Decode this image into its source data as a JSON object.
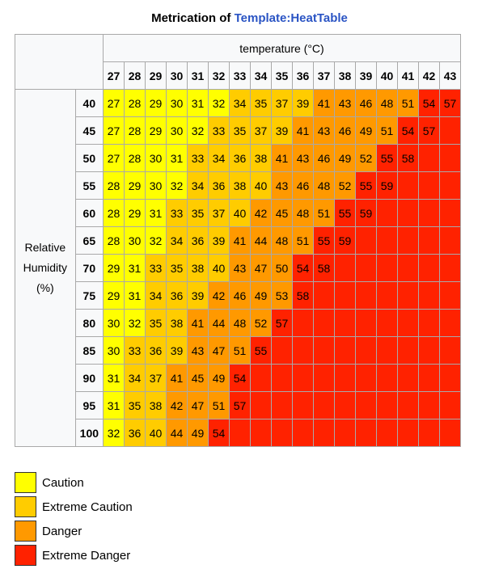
{
  "title": {
    "prefix": "Metrication of ",
    "link": "Template:HeatTable"
  },
  "chart_data": {
    "type": "heatmap",
    "header_label": "temperature (°C)",
    "row_label": [
      "Relative",
      "Humidity",
      "(%)"
    ],
    "temperatures": [
      27,
      28,
      29,
      30,
      31,
      32,
      33,
      34,
      35,
      36,
      37,
      38,
      39,
      40,
      41,
      42,
      43
    ],
    "humidities": [
      40,
      45,
      50,
      55,
      60,
      65,
      70,
      75,
      80,
      85,
      90,
      95,
      100
    ],
    "values": [
      [
        27,
        28,
        29,
        30,
        31,
        32,
        34,
        35,
        37,
        39,
        41,
        43,
        46,
        48,
        51,
        54,
        57
      ],
      [
        27,
        28,
        29,
        30,
        32,
        33,
        35,
        37,
        39,
        41,
        43,
        46,
        49,
        51,
        54,
        57,
        null
      ],
      [
        27,
        28,
        30,
        31,
        33,
        34,
        36,
        38,
        41,
        43,
        46,
        49,
        52,
        55,
        58,
        null,
        null
      ],
      [
        28,
        29,
        30,
        32,
        34,
        36,
        38,
        40,
        43,
        46,
        48,
        52,
        55,
        59,
        null,
        null,
        null
      ],
      [
        28,
        29,
        31,
        33,
        35,
        37,
        40,
        42,
        45,
        48,
        51,
        55,
        59,
        null,
        null,
        null,
        null
      ],
      [
        28,
        30,
        32,
        34,
        36,
        39,
        41,
        44,
        48,
        51,
        55,
        59,
        null,
        null,
        null,
        null,
        null
      ],
      [
        29,
        31,
        33,
        35,
        38,
        40,
        43,
        47,
        50,
        54,
        58,
        null,
        null,
        null,
        null,
        null,
        null
      ],
      [
        29,
        31,
        34,
        36,
        39,
        42,
        46,
        49,
        53,
        58,
        null,
        null,
        null,
        null,
        null,
        null,
        null
      ],
      [
        30,
        32,
        35,
        38,
        41,
        44,
        48,
        52,
        57,
        null,
        null,
        null,
        null,
        null,
        null,
        null,
        null
      ],
      [
        30,
        33,
        36,
        39,
        43,
        47,
        51,
        55,
        null,
        null,
        null,
        null,
        null,
        null,
        null,
        null,
        null
      ],
      [
        31,
        34,
        37,
        41,
        45,
        49,
        54,
        null,
        null,
        null,
        null,
        null,
        null,
        null,
        null,
        null,
        null
      ],
      [
        31,
        35,
        38,
        42,
        47,
        51,
        57,
        null,
        null,
        null,
        null,
        null,
        null,
        null,
        null,
        null,
        null
      ],
      [
        32,
        36,
        40,
        44,
        49,
        54,
        null,
        null,
        null,
        null,
        null,
        null,
        null,
        null,
        null,
        null,
        null
      ]
    ],
    "thresholds": [
      {
        "label": "Caution",
        "min": 27,
        "max": 32,
        "color": "#ffff00"
      },
      {
        "label": "Extreme Caution",
        "min": 33,
        "max": 40,
        "color": "#ffcc00"
      },
      {
        "label": "Danger",
        "min": 41,
        "max": 53,
        "color": "#ff9900"
      },
      {
        "label": "Extreme Danger",
        "min": 54,
        "max": null,
        "color": "#ff2200"
      }
    ]
  },
  "legend": [
    {
      "label": "Caution",
      "color": "#ffff00"
    },
    {
      "label": "Extreme Caution",
      "color": "#ffcc00"
    },
    {
      "label": "Danger",
      "color": "#ff9900"
    },
    {
      "label": "Extreme Danger",
      "color": "#ff2200"
    }
  ]
}
